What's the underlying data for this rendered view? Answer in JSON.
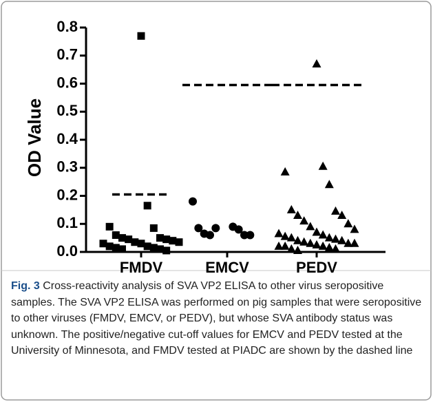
{
  "chart_data": {
    "type": "strip",
    "ylabel": "OD Value",
    "categories": [
      "FMDV",
      "EMCV",
      "PEDV"
    ],
    "markers": [
      "square",
      "circle",
      "triangle"
    ],
    "color": "#000000",
    "values": [
      [
        0.77,
        0.165,
        0.09,
        0.085,
        0.06,
        0.05,
        0.05,
        0.045,
        0.045,
        0.04,
        0.035,
        0.035,
        0.03,
        0.03,
        0.02,
        0.02,
        0.015,
        0.015,
        0.01,
        0.01,
        0.005
      ],
      [
        0.18,
        0.09,
        0.085,
        0.08,
        0.065,
        0.06,
        0.06,
        0.06,
        0.085
      ],
      [
        0.67,
        0.305,
        0.285,
        0.24,
        0.15,
        0.145,
        0.13,
        0.13,
        0.11,
        0.1,
        0.09,
        0.08,
        0.07,
        0.065,
        0.06,
        0.055,
        0.05,
        0.05,
        0.045,
        0.04,
        0.04,
        0.035,
        0.03,
        0.03,
        0.03,
        0.025,
        0.02,
        0.02,
        0.02,
        0.015,
        0.01,
        0.01,
        0.005
      ]
    ],
    "cutoffs": [
      0.205,
      0.595,
      0.595
    ],
    "ylim": [
      0,
      0.8
    ],
    "yticks": [
      {
        "value": 0,
        "label": "0.0"
      },
      0.1,
      0.2,
      0.3,
      0.4,
      0.5,
      0.6,
      0.7,
      0.8
    ]
  },
  "caption": {
    "label": "Fig. 3",
    "text": "Cross-reactivity analysis of SVA VP2 ELISA to other virus seropositive samples. The SVA VP2 ELISA was performed on pig samples that were seropositive to other viruses (FMDV, EMCV, or PEDV), but whose SVA antibody status was unknown. The positive/negative cut-off values for EMCV and PEDV tested at the University of Minnesota, and FMDV tested at PIADC are shown by the dashed line"
  }
}
